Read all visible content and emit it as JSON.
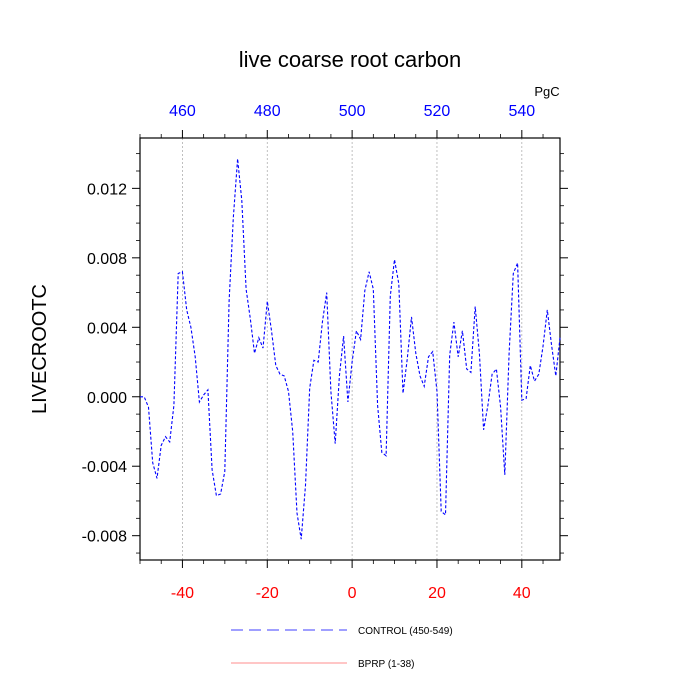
{
  "chart_data": {
    "type": "line",
    "title": "live coarse root carbon",
    "ylabel": "LIVECROOTC",
    "x_top_units": "PgC",
    "x_bottom": {
      "ticks": [
        -40,
        -20,
        0,
        20,
        40
      ],
      "labels": [
        "-40",
        "-20",
        "0",
        "20",
        "40"
      ],
      "color": "#ff0000",
      "range": [
        -50,
        49
      ]
    },
    "x_top": {
      "ticks": [
        460,
        480,
        500,
        520,
        540
      ],
      "labels": [
        "460",
        "480",
        "500",
        "520",
        "540"
      ],
      "color": "#0000ff",
      "range": [
        450,
        549
      ]
    },
    "y": {
      "ticks": [
        -0.008,
        -0.004,
        0.0,
        0.004,
        0.008,
        0.012
      ],
      "labels": [
        "-0.008",
        "-0.004",
        "0.000",
        "0.004",
        "0.008",
        "0.012"
      ],
      "range": [
        -0.0094,
        0.0149
      ]
    },
    "grid_x": true,
    "series": [
      {
        "name": "CONTROL (450-549)",
        "color": "#0000ff",
        "style": "dashed",
        "x": [
          -50,
          -49,
          -48,
          -47,
          -46,
          -45,
          -44,
          -43,
          -42,
          -41,
          -40,
          -39,
          -38,
          -37,
          -36,
          -35,
          -34,
          -33,
          -32,
          -31,
          -30,
          -29,
          -28,
          -27,
          -26,
          -25,
          -24,
          -23,
          -22,
          -21,
          -20,
          -19,
          -18,
          -17,
          -16,
          -15,
          -14,
          -13,
          -12,
          -11,
          -10,
          -9,
          -8,
          -7,
          -6,
          -5,
          -4,
          -3,
          -2,
          -1,
          0,
          1,
          2,
          3,
          4,
          5,
          6,
          7,
          8,
          9,
          10,
          11,
          12,
          13,
          14,
          15,
          16,
          17,
          18,
          19,
          20,
          21,
          22,
          23,
          24,
          25,
          26,
          27,
          28,
          29,
          30,
          31,
          32,
          33,
          34,
          35,
          36,
          37,
          38,
          39,
          40,
          41,
          42,
          43,
          44,
          45,
          46,
          47,
          48,
          49
        ],
        "y": [
          0.0,
          0.0,
          -0.0006,
          -0.0038,
          -0.0047,
          -0.0028,
          -0.0023,
          -0.0026,
          -0.0005,
          0.0071,
          0.0072,
          0.005,
          0.004,
          0.0023,
          -0.0003,
          0.0001,
          0.0004,
          -0.0042,
          -0.0057,
          -0.0056,
          -0.0043,
          0.0055,
          0.0103,
          0.0137,
          0.0113,
          0.0062,
          0.0045,
          0.0025,
          0.0034,
          0.0028,
          0.0055,
          0.0038,
          0.0018,
          0.0013,
          0.0012,
          0.0003,
          -0.002,
          -0.0067,
          -0.0082,
          -0.0051,
          0.0005,
          0.0021,
          0.002,
          0.0043,
          0.006,
          0.0003,
          -0.0027,
          0.0012,
          0.0035,
          -0.0003,
          0.002,
          0.0038,
          0.0033,
          0.0061,
          0.0072,
          0.0062,
          -0.0005,
          -0.0032,
          -0.0034,
          0.0058,
          0.0079,
          0.0065,
          0.0002,
          0.0022,
          0.0046,
          0.0025,
          0.0012,
          0.0006,
          0.0023,
          0.0026,
          0.0003,
          -0.0066,
          -0.0068,
          0.0024,
          0.0043,
          0.0023,
          0.0038,
          0.0016,
          0.0014,
          0.0052,
          0.0025,
          -0.0019,
          -0.0005,
          0.0013,
          0.0016,
          -0.0006,
          -0.0045,
          0.0025,
          0.0071,
          0.0077,
          -0.0002,
          -0.0001,
          0.0018,
          0.0009,
          0.0013,
          0.0029,
          0.005,
          0.003,
          0.0012,
          0.0034
        ]
      },
      {
        "name": "BPRP (1-38)",
        "color": "#ff6666",
        "style": "solid",
        "x": [],
        "y": []
      }
    ]
  }
}
